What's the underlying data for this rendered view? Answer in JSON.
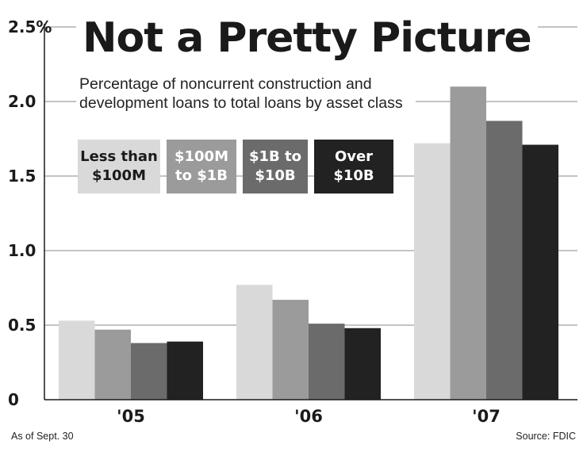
{
  "chart_data": {
    "type": "bar",
    "title": "Not a Pretty Picture",
    "subtitle": "Percentage of noncurrent construction and development loans to total loans by asset class",
    "categories": [
      "'05",
      "'06",
      "'07"
    ],
    "series": [
      {
        "name": "Less than $100M",
        "name_lines": [
          "Less than",
          "$100M"
        ],
        "values": [
          0.53,
          0.77,
          1.72
        ],
        "color": "#d9d9d9",
        "text_color": "#1a1a1a"
      },
      {
        "name": "$100M to $1B",
        "name_lines": [
          "$100M",
          "to $1B"
        ],
        "values": [
          0.47,
          0.67,
          2.1
        ],
        "color": "#9b9b9b",
        "text_color": "#ffffff"
      },
      {
        "name": "$1B to $10B",
        "name_lines": [
          "$1B to",
          "$10B"
        ],
        "values": [
          0.38,
          0.51,
          1.87
        ],
        "color": "#6b6b6b",
        "text_color": "#ffffff"
      },
      {
        "name": "Over $10B",
        "name_lines": [
          "Over",
          "$10B"
        ],
        "values": [
          0.39,
          0.48,
          1.71
        ],
        "color": "#222222",
        "text_color": "#ffffff"
      }
    ],
    "ylim": [
      0,
      2.5
    ],
    "yticks": [
      0,
      0.5,
      1.0,
      1.5,
      2.0,
      2.5
    ],
    "ytick_labels": [
      "0",
      "0.5",
      "1.0",
      "1.5",
      "2.0",
      "2.5%"
    ],
    "xlabel": "",
    "ylabel": "",
    "grid": true,
    "legend": "upper-left",
    "footnote": "As of Sept. 30",
    "source": "Source: FDIC"
  }
}
